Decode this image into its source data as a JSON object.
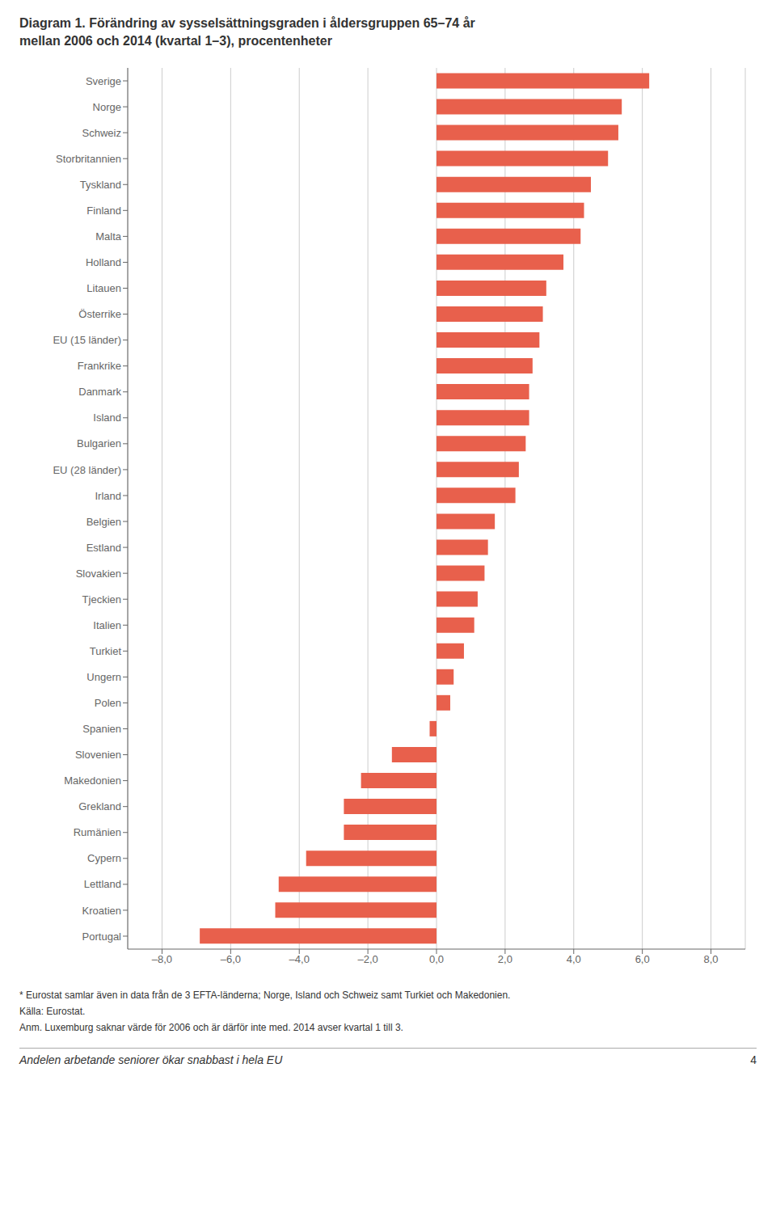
{
  "chart_data": {
    "type": "bar",
    "orientation": "horizontal",
    "title": "Diagram 1. Förändring av sysselsättningsgraden i åldersgruppen 65–74 år",
    "subtitle": "mellan 2006 och 2014 (kvartal 1–3), procentenheter",
    "categories": [
      "Sverige",
      "Norge",
      "Schweiz",
      "Storbritannien",
      "Tyskland",
      "Finland",
      "Malta",
      "Holland",
      "Litauen",
      "Österrike",
      "EU (15 länder)",
      "Frankrike",
      "Danmark",
      "Island",
      "Bulgarien",
      "EU (28 länder)",
      "Irland",
      "Belgien",
      "Estland",
      "Slovakien",
      "Tjeckien",
      "Italien",
      "Turkiet",
      "Ungern",
      "Polen",
      "Spanien",
      "Slovenien",
      "Makedonien",
      "Grekland",
      "Rumänien",
      "Cypern",
      "Lettland",
      "Kroatien",
      "Portugal"
    ],
    "values": [
      6.2,
      5.4,
      5.3,
      5.0,
      4.5,
      4.3,
      4.2,
      3.7,
      3.2,
      3.1,
      3.0,
      2.8,
      2.7,
      2.7,
      2.6,
      2.4,
      2.3,
      1.7,
      1.5,
      1.4,
      1.2,
      1.1,
      0.8,
      0.5,
      0.4,
      -0.2,
      -1.3,
      -2.2,
      -2.7,
      -2.7,
      -3.8,
      -4.6,
      -4.7,
      -6.9
    ],
    "color": "#e8604c",
    "xlim": [
      -9.0,
      9.0
    ],
    "xticks": [
      {
        "value": -8.0,
        "label": "–8,0"
      },
      {
        "value": -6.0,
        "label": "–6,0"
      },
      {
        "value": -4.0,
        "label": "–4,0"
      },
      {
        "value": -2.0,
        "label": "–2,0"
      },
      {
        "value": 0.0,
        "label": "0,0"
      },
      {
        "value": 2.0,
        "label": "2,0"
      },
      {
        "value": 4.0,
        "label": "4,0"
      },
      {
        "value": 6.0,
        "label": "6,0"
      },
      {
        "value": 8.0,
        "label": "8,0"
      }
    ],
    "grid": true,
    "annotations": [
      "* Eurostat samlar även in data från de 3 EFTA-länderna; Norge, Island och Schweiz samt Turkiet och Makedonien.",
      "Källa: Eurostat.",
      "Anm. Luxemburg saknar värde för 2006 och är därför inte med. 2014 avser kvartal 1 till 3.",
      "Andelen arbetande seniorer ökar snabbast i hela EU",
      "4"
    ]
  }
}
